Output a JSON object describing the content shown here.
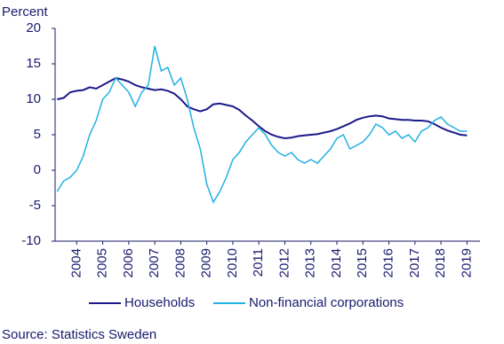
{
  "chart_data": {
    "type": "line",
    "y_label": "Percent",
    "source": "Source: Statistics Sweden",
    "x": [
      2003.75,
      2004,
      2004.25,
      2004.5,
      2004.75,
      2005,
      2005.25,
      2005.5,
      2005.75,
      2006,
      2006.25,
      2006.5,
      2006.75,
      2007,
      2007.25,
      2007.5,
      2007.75,
      2008,
      2008.25,
      2008.5,
      2008.75,
      2009,
      2009.25,
      2009.5,
      2009.75,
      2010,
      2010.25,
      2010.5,
      2010.75,
      2011,
      2011.25,
      2011.5,
      2011.75,
      2012,
      2012.25,
      2012.5,
      2012.75,
      2013,
      2013.25,
      2013.5,
      2013.75,
      2014,
      2014.25,
      2014.5,
      2014.75,
      2015,
      2015.25,
      2015.5,
      2015.75,
      2016,
      2016.25,
      2016.5,
      2016.75,
      2017,
      2017.25,
      2017.5,
      2017.75,
      2018,
      2018.25,
      2018.5,
      2018.75,
      2019,
      2019.25,
      2019.5
    ],
    "series": [
      {
        "name": "Households",
        "color": "#1c1a8a",
        "values": [
          10,
          10.2,
          11,
          11.2,
          11.3,
          11.7,
          11.5,
          12,
          12.5,
          13,
          12.8,
          12.5,
          12,
          11.7,
          11.5,
          11.3,
          11.4,
          11.2,
          10.8,
          10,
          9,
          8.6,
          8.3,
          8.6,
          9.3,
          9.4,
          9.2,
          9,
          8.5,
          7.7,
          7,
          6.2,
          5.5,
          5,
          4.7,
          4.5,
          4.6,
          4.8,
          4.9,
          5,
          5.1,
          5.3,
          5.5,
          5.8,
          6.2,
          6.6,
          7.1,
          7.4,
          7.6,
          7.7,
          7.6,
          7.3,
          7.2,
          7.1,
          7.1,
          7,
          7,
          6.9,
          6.5,
          6,
          5.6,
          5.3,
          5,
          4.9
        ]
      },
      {
        "name": "Non-financial corporations",
        "color": "#22b1e3",
        "values": [
          -3,
          -1.5,
          -1,
          0,
          2,
          5,
          7,
          10,
          11,
          13,
          12,
          11,
          9,
          11,
          12,
          17.5,
          14,
          14.5,
          12,
          13,
          10,
          6,
          3,
          -2,
          -4.5,
          -3,
          -1,
          1.5,
          2.5,
          4,
          5,
          6,
          5,
          3.5,
          2.5,
          2,
          2.5,
          1.5,
          1,
          1.5,
          1,
          2,
          3,
          4.5,
          5,
          3,
          3.5,
          4,
          5,
          6.5,
          6,
          5,
          5.5,
          4.5,
          5,
          4,
          5.5,
          6,
          7,
          7.5,
          6.5,
          6,
          5.5,
          5.5
        ]
      }
    ],
    "xlim": [
      2003.67,
      2020
    ],
    "xticks": [
      {
        "value": 2004.5,
        "label": "2004"
      },
      {
        "value": 2005.5,
        "label": "2005"
      },
      {
        "value": 2006.5,
        "label": "2006"
      },
      {
        "value": 2007.5,
        "label": "2007"
      },
      {
        "value": 2008.5,
        "label": "2008"
      },
      {
        "value": 2009.5,
        "label": "2009"
      },
      {
        "value": 2010.5,
        "label": "2010"
      },
      {
        "value": 2011.5,
        "label": "2011"
      },
      {
        "value": 2012.5,
        "label": "2012"
      },
      {
        "value": 2013.5,
        "label": "2013"
      },
      {
        "value": 2014.5,
        "label": "2014"
      },
      {
        "value": 2015.5,
        "label": "2015"
      },
      {
        "value": 2016.5,
        "label": "2016"
      },
      {
        "value": 2017.5,
        "label": "2017"
      },
      {
        "value": 2018.5,
        "label": "2018"
      },
      {
        "value": 2019.5,
        "label": "2019"
      }
    ],
    "ylim": [
      -10,
      20
    ],
    "yticks": [
      -10,
      -5,
      0,
      5,
      10,
      15,
      20
    ],
    "grid": false
  }
}
